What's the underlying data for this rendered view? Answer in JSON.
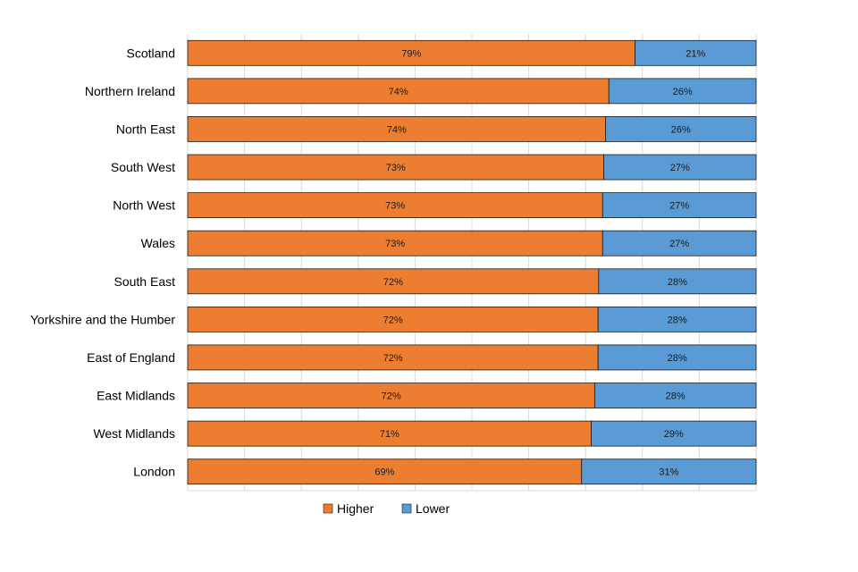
{
  "chart_data": {
    "type": "bar",
    "orientation": "horizontal",
    "stacked": true,
    "percent_stacked": true,
    "categories": [
      "Scotland",
      "Northern Ireland",
      "North East",
      "South West",
      "North West",
      "Wales",
      "South East",
      "Yorkshire and the Humber",
      "East of England",
      "East Midlands",
      "West Midlands",
      "London"
    ],
    "series": [
      {
        "name": "Higher",
        "color": "#ED7D31",
        "values": [
          78.7,
          74.1,
          73.5,
          73.2,
          73.0,
          73.0,
          72.3,
          72.2,
          72.2,
          71.6,
          71.0,
          69.3
        ],
        "labels": [
          "79%",
          "74%",
          "74%",
          "73%",
          "73%",
          "73%",
          "72%",
          "72%",
          "72%",
          "72%",
          "71%",
          "69%"
        ]
      },
      {
        "name": "Lower",
        "color": "#5B9BD5",
        "values": [
          21.3,
          25.9,
          26.5,
          26.8,
          27.0,
          27.0,
          27.7,
          27.8,
          27.8,
          28.4,
          29.0,
          30.7
        ],
        "labels": [
          "21%",
          "26%",
          "26%",
          "27%",
          "27%",
          "27%",
          "28%",
          "28%",
          "28%",
          "28%",
          "29%",
          "31%"
        ]
      }
    ],
    "title": "",
    "xlabel": "",
    "ylabel": "",
    "xlim": [
      0,
      100
    ],
    "grid": true,
    "legend": "bottom"
  }
}
